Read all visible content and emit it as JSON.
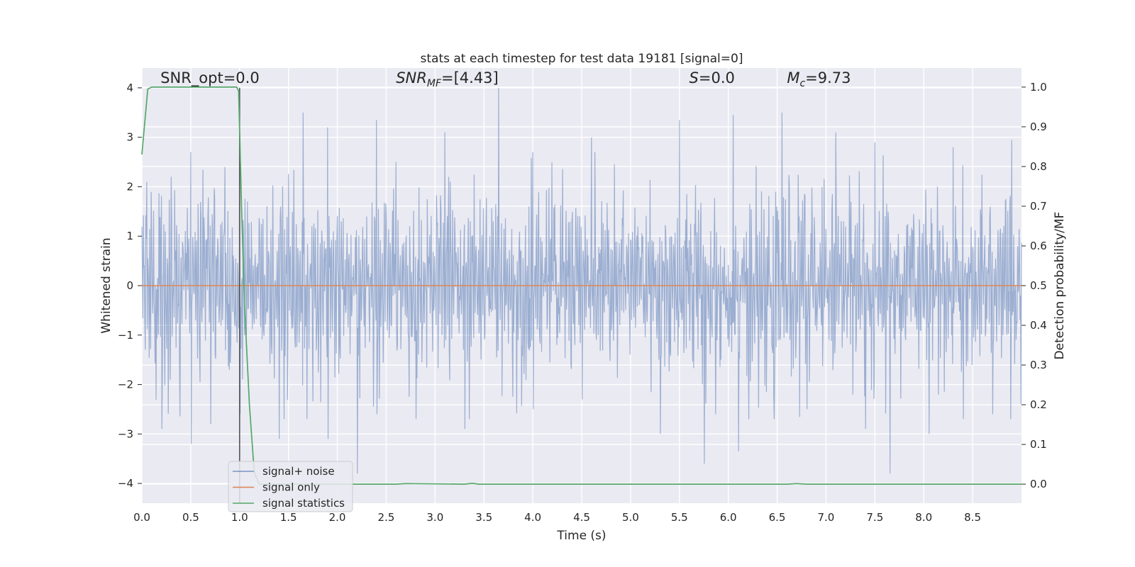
{
  "chart_data": {
    "type": "line",
    "title": "stats at each timestep for test data 19181 [signal=0]",
    "xlabel": "Time (s)",
    "ylabel": "Whitened strain",
    "y2label": "Detection probability/MF",
    "xlim": [
      0.0,
      9.0
    ],
    "ylim": [
      -4.4,
      4.4
    ],
    "y2lim": [
      -0.048,
      1.048
    ],
    "grid": true,
    "legend_position": "lower-left",
    "xticks": [
      "0.0",
      "0.5",
      "1.0",
      "1.5",
      "2.0",
      "2.5",
      "3.0",
      "3.5",
      "4.0",
      "4.5",
      "5.0",
      "5.5",
      "6.0",
      "6.5",
      "7.0",
      "7.5",
      "8.0",
      "8.5"
    ],
    "xtick_values": [
      0,
      0.5,
      1,
      1.5,
      2,
      2.5,
      3,
      3.5,
      4,
      4.5,
      5,
      5.5,
      6,
      6.5,
      7,
      7.5,
      8,
      8.5
    ],
    "yticks": [
      "−4",
      "−3",
      "−2",
      "−1",
      "0",
      "1",
      "2",
      "3",
      "4"
    ],
    "ytick_values": [
      -4,
      -3,
      -2,
      -1,
      0,
      1,
      2,
      3,
      4
    ],
    "y2ticks": [
      "0.0",
      "0.1",
      "0.2",
      "0.3",
      "0.4",
      "0.5",
      "0.6",
      "0.7",
      "0.8",
      "0.9",
      "1.0"
    ],
    "y2tick_values": [
      0,
      0.1,
      0.2,
      0.3,
      0.4,
      0.5,
      0.6,
      0.7,
      0.8,
      0.9,
      1.0
    ],
    "series": [
      {
        "name": "signal+ noise",
        "axis": "left",
        "color": "#4c72b0",
        "opacity": 0.5,
        "description_values": "dense whitened noise, mostly within ±2, peaks up to about 4.0 at t≈3.65 and down to about -3.8 at t≈2.2",
        "peaks": [
          [
            0.05,
            2.1
          ],
          [
            0.3,
            2.2
          ],
          [
            0.5,
            2.7
          ],
          [
            0.85,
            2.4
          ],
          [
            1.0,
            4.0
          ],
          [
            1.65,
            3.5
          ],
          [
            1.9,
            3.2
          ],
          [
            2.4,
            3.35
          ],
          [
            2.6,
            2.5
          ],
          [
            3.1,
            3.1
          ],
          [
            3.65,
            4.0
          ],
          [
            4.0,
            2.7
          ],
          [
            4.6,
            3.0
          ],
          [
            5.5,
            3.35
          ],
          [
            6.05,
            3.45
          ],
          [
            6.55,
            3.5
          ],
          [
            7.1,
            3.1
          ],
          [
            7.5,
            2.9
          ],
          [
            8.3,
            2.8
          ],
          [
            8.9,
            2.95
          ]
        ],
        "troughs": [
          [
            0.2,
            -2.9
          ],
          [
            0.5,
            -3.2
          ],
          [
            0.7,
            -2.8
          ],
          [
            1.0,
            -2.6
          ],
          [
            1.4,
            -3.1
          ],
          [
            1.9,
            -3.1
          ],
          [
            2.2,
            -3.8
          ],
          [
            2.4,
            -2.6
          ],
          [
            3.3,
            -2.9
          ],
          [
            4.0,
            -2.5
          ],
          [
            4.5,
            -2.3
          ],
          [
            5.3,
            -3.0
          ],
          [
            5.75,
            -3.6
          ],
          [
            6.1,
            -3.35
          ],
          [
            6.8,
            -2.5
          ],
          [
            7.4,
            -2.9
          ],
          [
            7.65,
            -3.8
          ],
          [
            8.05,
            -3.0
          ],
          [
            8.7,
            -2.6
          ],
          [
            9.0,
            -2.4
          ]
        ]
      },
      {
        "name": "signal only",
        "axis": "left",
        "color": "#dd8452",
        "x": [
          0.0,
          9.0
        ],
        "y": [
          0.0,
          0.0
        ]
      },
      {
        "name": "signal statistics",
        "axis": "right",
        "color": "#55a868",
        "x": [
          0.0,
          0.06,
          0.1,
          0.2,
          0.5,
          0.8,
          0.97,
          0.99,
          1.02,
          1.05,
          1.1,
          1.15,
          1.2,
          2.6,
          2.7,
          3.3,
          3.38,
          3.45,
          6.6,
          6.7,
          6.8,
          9.0
        ],
        "y": [
          0.83,
          0.995,
          1.0,
          1.0,
          1.0,
          1.0,
          1.0,
          0.99,
          0.7,
          0.45,
          0.2,
          0.03,
          0.0,
          0.0,
          0.0015,
          0.0,
          0.002,
          0.0,
          0.0,
          0.0015,
          0.0,
          0.0
        ]
      }
    ],
    "vertical_line": {
      "x": 1.0,
      "color": "#555555"
    },
    "annotations": [
      {
        "text": "SNR_opt=0.0",
        "x": 0.19,
        "y": 4.1
      },
      {
        "text": "SNR",
        "sub": "MF",
        "suffix": "=[4.43]",
        "italic": true,
        "x": 2.6,
        "y": 4.1
      },
      {
        "text": "S",
        "suffix": "=0.0",
        "italic": true,
        "x": 5.6,
        "y": 4.1
      },
      {
        "text": "M",
        "sub": "c",
        "suffix": "=9.73",
        "italic": true,
        "x": 6.6,
        "y": 4.1
      }
    ]
  }
}
